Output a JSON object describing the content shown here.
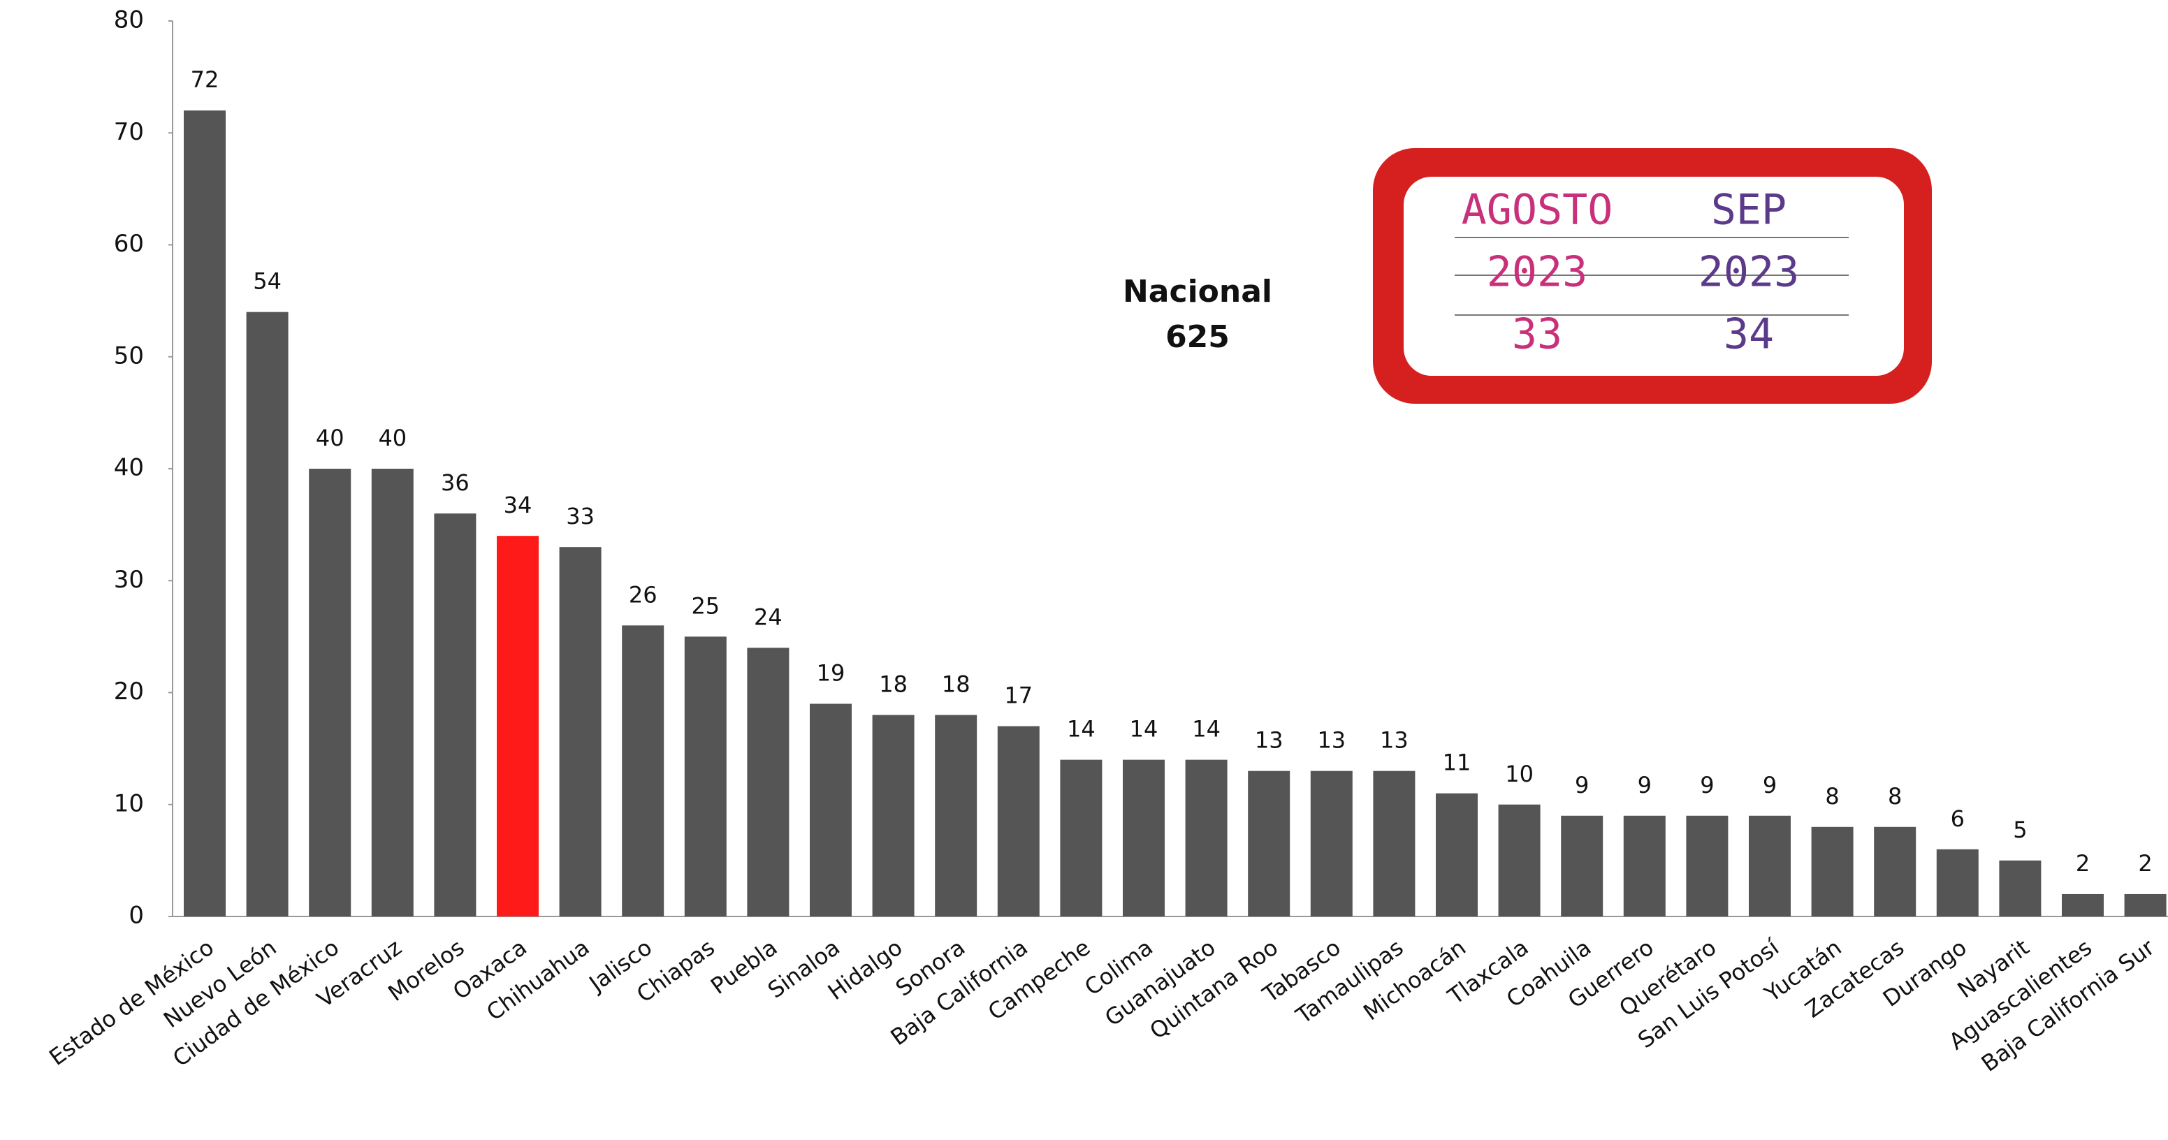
{
  "chart_data": {
    "type": "bar",
    "categories": [
      "Estado de México",
      "Nuevo León",
      "Ciudad de México",
      "Veracruz",
      "Morelos",
      "Oaxaca",
      "Chihuahua",
      "Jalisco",
      "Chiapas",
      "Puebla",
      "Sinaloa",
      "Hidalgo",
      "Sonora",
      "Baja California",
      "Campeche",
      "Colima",
      "Guanajuato",
      "Quintana Roo",
      "Tabasco",
      "Tamaulipas",
      "Michoacán",
      "Tlaxcala",
      "Coahuila",
      "Guerrero",
      "Querétaro",
      "San Luis Potosí",
      "Yucatán",
      "Zacatecas",
      "Durango",
      "Nayarit",
      "Aguascalientes",
      "Baja California Sur"
    ],
    "values": [
      72,
      54,
      40,
      40,
      36,
      34,
      33,
      26,
      25,
      24,
      19,
      18,
      18,
      17,
      14,
      14,
      14,
      13,
      13,
      13,
      11,
      10,
      9,
      9,
      9,
      9,
      8,
      8,
      6,
      5,
      2,
      2
    ],
    "colors": [
      "#555555",
      "#555555",
      "#555555",
      "#555555",
      "#555555",
      "#ff1a1a",
      "#555555",
      "#555555",
      "#555555",
      "#555555",
      "#555555",
      "#555555",
      "#555555",
      "#555555",
      "#555555",
      "#555555",
      "#555555",
      "#555555",
      "#555555",
      "#555555",
      "#555555",
      "#555555",
      "#555555",
      "#555555",
      "#555555",
      "#555555",
      "#555555",
      "#555555",
      "#555555",
      "#555555",
      "#555555",
      "#555555"
    ],
    "ylim": [
      0,
      80
    ],
    "yticks": [
      0,
      10,
      20,
      30,
      40,
      50,
      60,
      70,
      80
    ],
    "grid": false,
    "national_label": "Nacional",
    "national_total": 625,
    "comparison": [
      {
        "month": "AGOSTO",
        "year": 2023,
        "value": 33,
        "color": "#c8307a"
      },
      {
        "month": "SEP",
        "year": 2023,
        "value": 34,
        "color": "#5b3a8a"
      }
    ]
  }
}
